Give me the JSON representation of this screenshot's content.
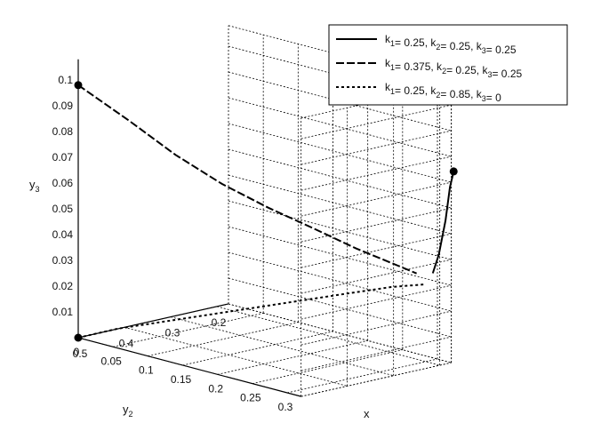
{
  "chart_data": {
    "type": "line",
    "projection": "3d",
    "grid": true,
    "legend_placement": "top-right",
    "axes": {
      "x": {
        "label": "x",
        "ticks": [
          "0",
          "0.05",
          "0.1",
          "0.15",
          "0.2",
          "0.25",
          "0.3"
        ]
      },
      "y2": {
        "label": "y",
        "label_sub": "2",
        "ticks": [
          "0.5",
          "0.4",
          "0.3",
          "0.2"
        ]
      },
      "y3": {
        "label": "y",
        "label_sub": "3",
        "ticks": [
          "0.01",
          "0.02",
          "0.03",
          "0.04",
          "0.05",
          "0.06",
          "0.07",
          "0.08",
          "0.09",
          "0.1"
        ]
      }
    },
    "series": [
      {
        "legend": [
          {
            "t": "k"
          },
          {
            "t": "1",
            "sub": true
          },
          {
            "t": "= 0.25, k"
          },
          {
            "t": "2",
            "sub": true
          },
          {
            "t": "= 0.25, k"
          },
          {
            "t": "3",
            "sub": true
          },
          {
            "t": "= 0.25"
          }
        ],
        "style": "solid",
        "x": [
          0.32,
          0.318,
          0.315,
          0.312,
          0.31
        ],
        "y2": [
          0.17,
          0.175,
          0.18,
          0.19,
          0.2
        ],
        "y3": [
          0.074,
          0.068,
          0.055,
          0.042,
          0.035
        ]
      },
      {
        "legend": [
          {
            "t": "k"
          },
          {
            "t": "1",
            "sub": true
          },
          {
            "t": "= 0.375, k"
          },
          {
            "t": "2",
            "sub": true
          },
          {
            "t": "= 0.25, k"
          },
          {
            "t": "3",
            "sub": true
          },
          {
            "t": "= 0.25"
          }
        ],
        "style": "dashed",
        "x": [
          0.0,
          0.04,
          0.08,
          0.12,
          0.16,
          0.2,
          0.24,
          0.28,
          0.3
        ],
        "y2": [
          0.5,
          0.45,
          0.41,
          0.37,
          0.33,
          0.29,
          0.26,
          0.23,
          0.22
        ],
        "y3": [
          0.098,
          0.085,
          0.073,
          0.063,
          0.055,
          0.048,
          0.042,
          0.037,
          0.035
        ]
      },
      {
        "legend": [
          {
            "t": "k"
          },
          {
            "t": "1",
            "sub": true
          },
          {
            "t": "= 0.25, k"
          },
          {
            "t": "2",
            "sub": true
          },
          {
            "t": "= 0.85, k"
          },
          {
            "t": "3",
            "sub": true
          },
          {
            "t": "= 0"
          }
        ],
        "style": "dotted",
        "x": [
          0.0,
          0.03,
          0.07,
          0.12,
          0.17,
          0.22,
          0.27,
          0.3
        ],
        "y2": [
          0.5,
          0.46,
          0.42,
          0.37,
          0.32,
          0.27,
          0.23,
          0.2
        ],
        "y3": [
          0.0,
          0.004,
          0.008,
          0.013,
          0.018,
          0.023,
          0.028,
          0.03
        ]
      }
    ]
  }
}
